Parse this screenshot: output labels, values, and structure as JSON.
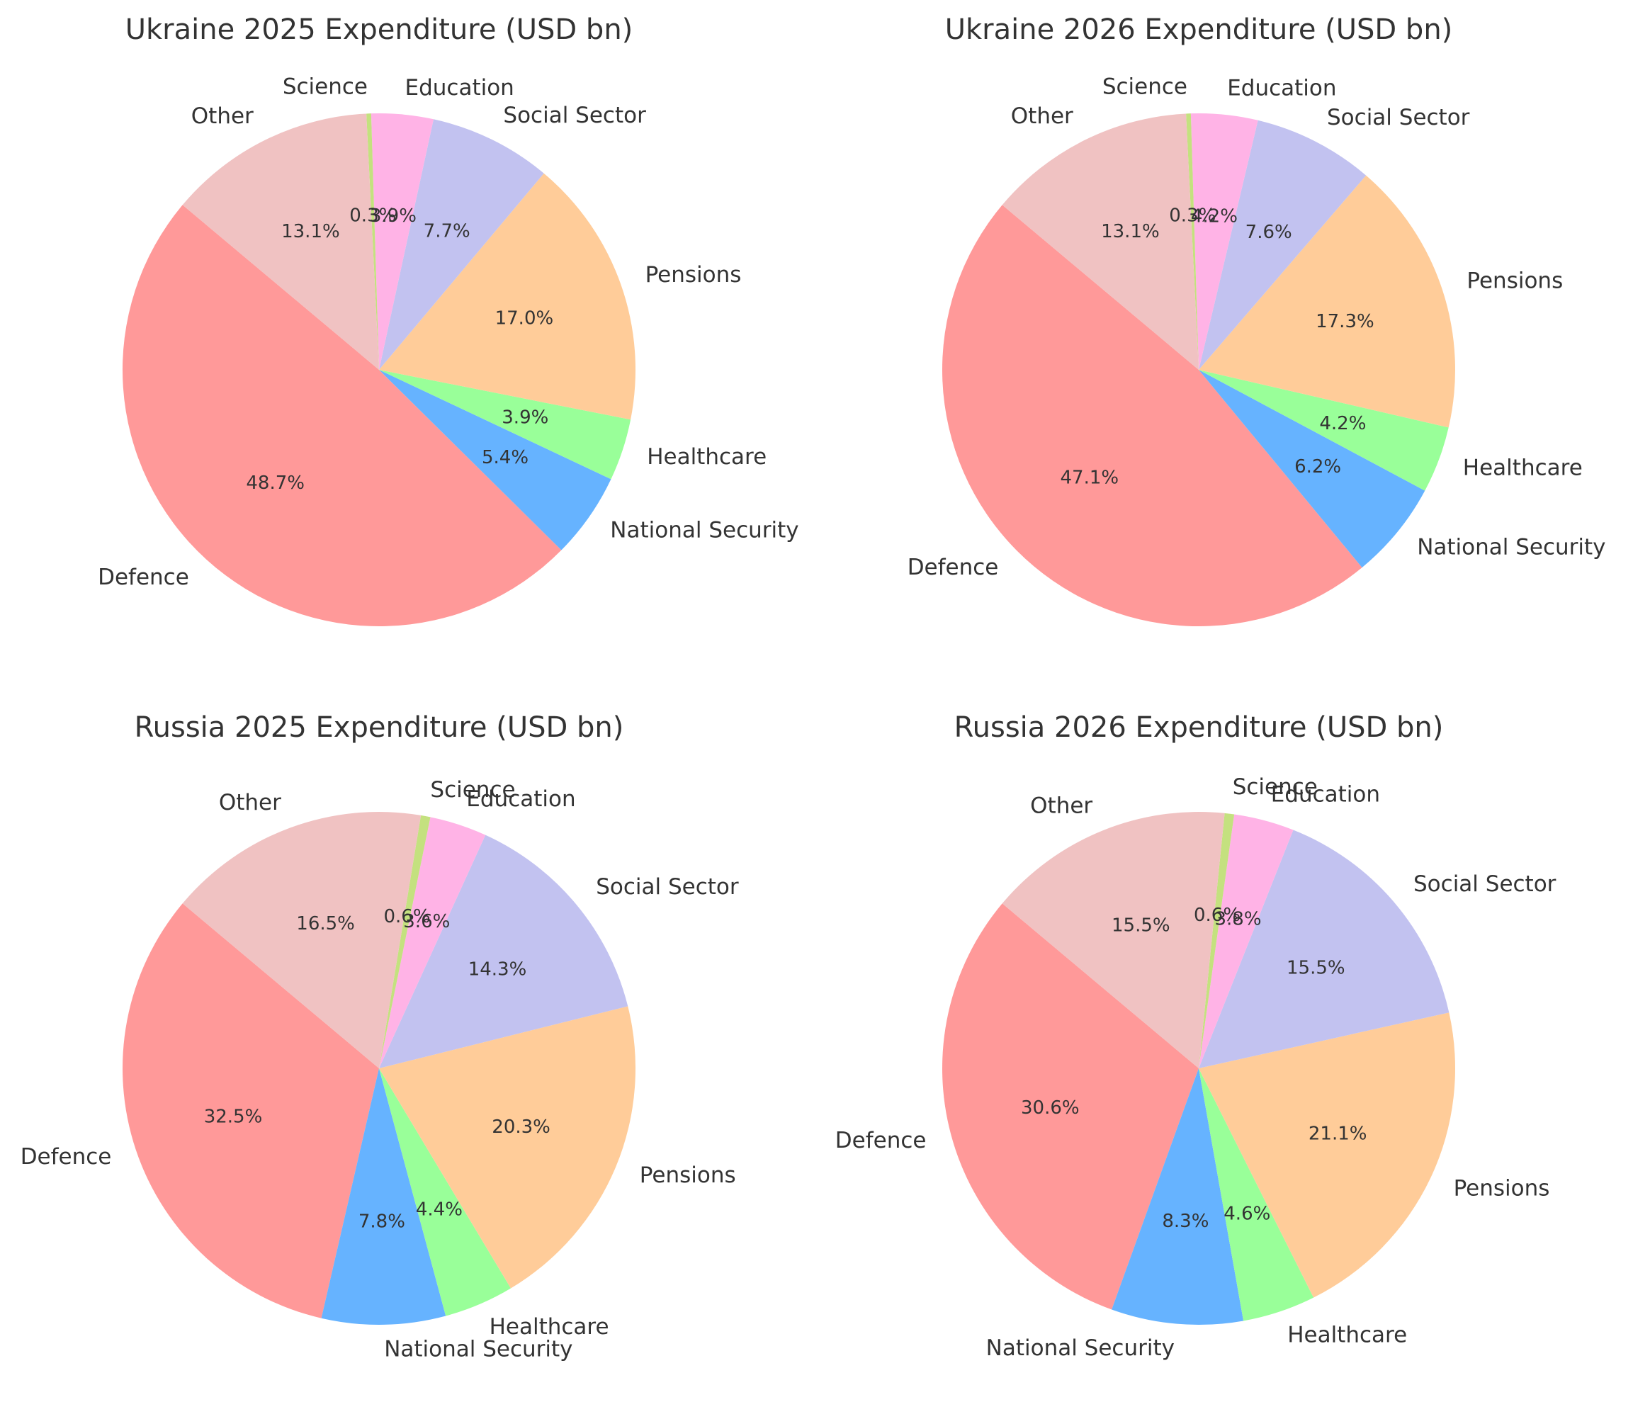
{
  "chart_data": [
    {
      "type": "pie",
      "title": "Ukraine 2025 Expenditure (USD bn)",
      "categories": [
        "Defence",
        "National Security",
        "Healthcare",
        "Pensions",
        "Social Sector",
        "Education",
        "Science",
        "Other"
      ],
      "values": [
        48.7,
        5.4,
        3.9,
        17.0,
        7.7,
        3.9,
        0.3,
        13.1
      ],
      "value_labels": [
        "48.7%",
        "5.4%",
        "3.9%",
        "17.0%",
        "7.7%",
        "3.9%",
        "0.3%",
        "13.1%"
      ]
    },
    {
      "type": "pie",
      "title": "Ukraine 2026 Expenditure (USD bn)",
      "categories": [
        "Defence",
        "National Security",
        "Healthcare",
        "Pensions",
        "Social Sector",
        "Education",
        "Science",
        "Other"
      ],
      "values": [
        47.1,
        6.2,
        4.2,
        17.3,
        7.6,
        4.2,
        0.3,
        13.1
      ],
      "value_labels": [
        "47.1%",
        "6.2%",
        "4.2%",
        "17.3%",
        "7.6%",
        "4.2%",
        "0.3%",
        "13.1%"
      ]
    },
    {
      "type": "pie",
      "title": "Russia 2025 Expenditure (USD bn)",
      "categories": [
        "Defence",
        "National Security",
        "Healthcare",
        "Pensions",
        "Social Sector",
        "Education",
        "Science",
        "Other"
      ],
      "values": [
        32.5,
        7.8,
        4.4,
        20.3,
        14.3,
        3.6,
        0.6,
        16.5
      ],
      "value_labels": [
        "32.5%",
        "7.8%",
        "4.4%",
        "20.3%",
        "14.3%",
        "3.6%",
        "0.6%",
        "16.5%"
      ]
    },
    {
      "type": "pie",
      "title": "Russia 2026 Expenditure (USD bn)",
      "categories": [
        "Defence",
        "National Security",
        "Healthcare",
        "Pensions",
        "Social Sector",
        "Education",
        "Science",
        "Other"
      ],
      "values": [
        30.6,
        8.3,
        4.6,
        21.1,
        15.5,
        3.8,
        0.6,
        15.5
      ],
      "value_labels": [
        "30.6%",
        "8.3%",
        "4.6%",
        "21.1%",
        "15.5%",
        "3.8%",
        "0.6%",
        "15.5%"
      ]
    }
  ],
  "colors": [
    "#ff9999",
    "#66b3ff",
    "#99ff99",
    "#ffcc99",
    "#c2c2f0",
    "#ffb3e6",
    "#c4e17f",
    "#f0c2c2"
  ]
}
